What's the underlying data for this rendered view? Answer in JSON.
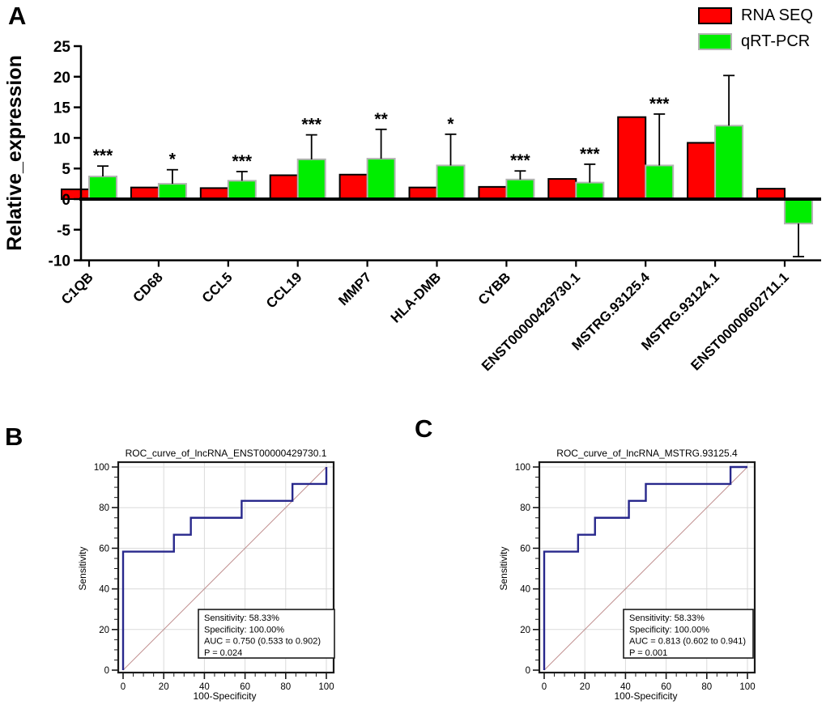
{
  "figure": {
    "background": "#ffffff"
  },
  "panels": {
    "a": {
      "label": "A",
      "legend": [
        {
          "label": "RNA SEQ",
          "fill": "#ff0000",
          "stroke": "#000000"
        },
        {
          "label": "qRT-PCR",
          "fill": "#00ee00",
          "stroke": "#b3b3b3"
        }
      ]
    },
    "b": {
      "label": "B"
    },
    "c": {
      "label": "C"
    }
  },
  "chart_data": [
    {
      "type": "bar",
      "panel": "A",
      "title": "",
      "xlabel": "",
      "ylabel": "Relative_expression",
      "ylim": [
        -10,
        25
      ],
      "yticks": [
        25,
        20,
        15,
        10,
        5,
        0,
        -5,
        -10
      ],
      "grid": false,
      "legend_position": "top-right",
      "categories": [
        "C1QB",
        "CD68",
        "CCL5",
        "CCL19",
        "MMP7",
        "HLA-DMB",
        "CYBB",
        "ENST00000429730.1",
        "MSTRG.93125.4",
        "MSTRG.93124.1",
        "ENST00000602711.1"
      ],
      "series": [
        {
          "name": "RNA SEQ",
          "color": "#ff0000",
          "border": "#000000",
          "values": [
            1.6,
            1.9,
            1.8,
            3.9,
            4.0,
            1.9,
            2.0,
            3.3,
            13.4,
            9.2,
            1.7
          ]
        },
        {
          "name": "qRT-PCR",
          "color": "#00ee00",
          "border": "#b3b3b3",
          "values": [
            3.7,
            2.5,
            3.0,
            6.5,
            6.6,
            5.5,
            3.2,
            2.7,
            5.5,
            12.0,
            -4.0
          ],
          "errors": [
            1.7,
            2.3,
            1.5,
            4.0,
            4.8,
            5.1,
            1.4,
            3.0,
            8.4,
            8.2,
            5.4
          ]
        }
      ],
      "significance": [
        "***",
        "*",
        "***",
        "***",
        "**",
        "*",
        "***",
        "***",
        "***",
        "",
        ""
      ]
    },
    {
      "type": "line",
      "panel": "B",
      "title": "ROC_curve_of_lncRNA_ENST00000429730.1",
      "xlabel": "100-Specificity",
      "ylabel": "Sensitivity",
      "xlim": [
        0,
        100
      ],
      "ylim": [
        0,
        100
      ],
      "xticks": [
        0,
        20,
        40,
        60,
        80,
        100
      ],
      "yticks": [
        0,
        20,
        40,
        60,
        80,
        100
      ],
      "grid": true,
      "curve_color": "#28288c",
      "diagonal_color": "#c09090",
      "roc_points": [
        [
          0,
          0
        ],
        [
          0,
          58.33
        ],
        [
          25,
          58.33
        ],
        [
          25,
          66.67
        ],
        [
          33.33,
          66.67
        ],
        [
          33.33,
          75
        ],
        [
          58.33,
          75
        ],
        [
          58.33,
          83.33
        ],
        [
          83.33,
          83.33
        ],
        [
          83.33,
          91.67
        ],
        [
          100,
          91.67
        ],
        [
          100,
          100
        ]
      ],
      "diagonal": [
        [
          0,
          0
        ],
        [
          100,
          100
        ]
      ],
      "annotation": [
        "Sensitivity: 58.33%",
        "Specificity: 100.00%",
        "AUC = 0.750 (0.533 to 0.902)",
        "P = 0.024"
      ]
    },
    {
      "type": "line",
      "panel": "C",
      "title": "ROC_curve_of_lncRNA_MSTRG.93125.4",
      "xlabel": "100-Specificity",
      "ylabel": "Sensitivity",
      "xlim": [
        0,
        100
      ],
      "ylim": [
        0,
        100
      ],
      "xticks": [
        0,
        20,
        40,
        60,
        80,
        100
      ],
      "yticks": [
        0,
        20,
        40,
        60,
        80,
        100
      ],
      "grid": true,
      "curve_color": "#28288c",
      "diagonal_color": "#c09090",
      "roc_points": [
        [
          0,
          0
        ],
        [
          0,
          58.33
        ],
        [
          16.67,
          58.33
        ],
        [
          16.67,
          66.67
        ],
        [
          25,
          66.67
        ],
        [
          25,
          75
        ],
        [
          41.67,
          75
        ],
        [
          41.67,
          83.33
        ],
        [
          50,
          83.33
        ],
        [
          50,
          91.67
        ],
        [
          91.67,
          91.67
        ],
        [
          91.67,
          100
        ],
        [
          100,
          100
        ]
      ],
      "diagonal": [
        [
          0,
          0
        ],
        [
          100,
          100
        ]
      ],
      "annotation": [
        "Sensitivity: 58.33%",
        "Specificity: 100.00%",
        "AUC = 0.813 (0.602 to 0.941)",
        "P = 0.001"
      ]
    }
  ]
}
